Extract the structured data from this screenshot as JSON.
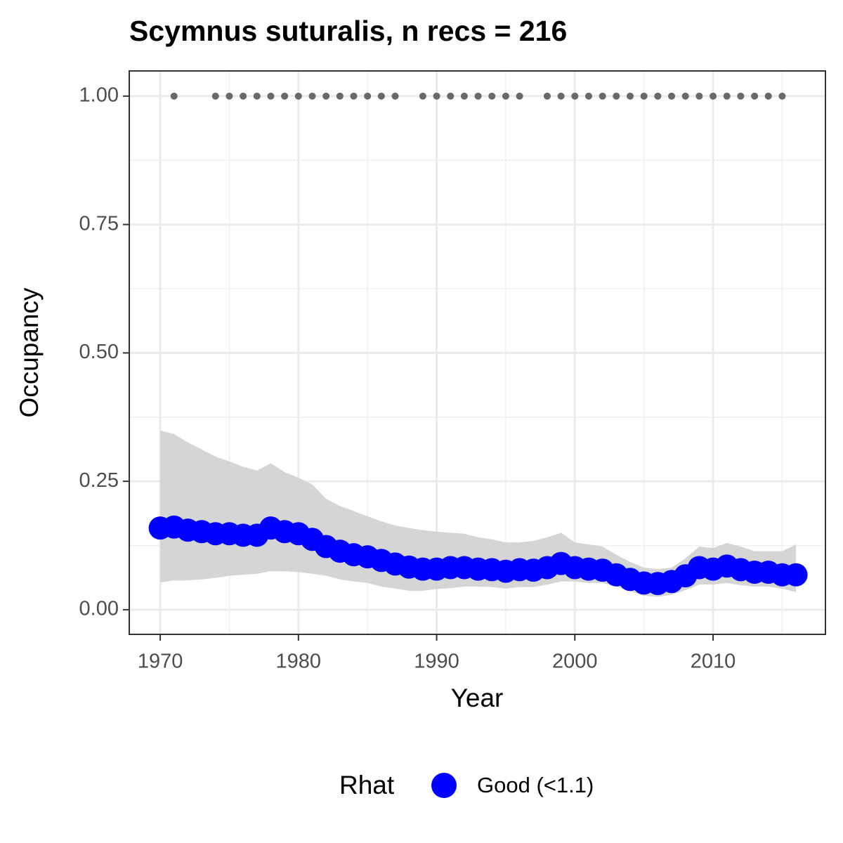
{
  "chart_data": {
    "type": "line",
    "title": "Scymnus suturalis, n recs = 216",
    "x_label": "Year",
    "y_label": "Occupancy",
    "x": [
      1970,
      1971,
      1972,
      1973,
      1974,
      1975,
      1976,
      1977,
      1978,
      1979,
      1980,
      1981,
      1982,
      1983,
      1984,
      1985,
      1986,
      1987,
      1988,
      1989,
      1990,
      1991,
      1992,
      1993,
      1994,
      1995,
      1996,
      1997,
      1998,
      1999,
      2000,
      2001,
      2002,
      2003,
      2004,
      2005,
      2006,
      2007,
      2008,
      2009,
      2010,
      2011,
      2012,
      2013,
      2014,
      2015,
      2016
    ],
    "series": [
      {
        "name": "Good (<1.1)",
        "color": "#0000ff",
        "values": [
          0.159,
          0.161,
          0.155,
          0.152,
          0.148,
          0.148,
          0.145,
          0.145,
          0.159,
          0.152,
          0.148,
          0.137,
          0.123,
          0.114,
          0.107,
          0.103,
          0.096,
          0.089,
          0.083,
          0.079,
          0.079,
          0.082,
          0.082,
          0.079,
          0.078,
          0.075,
          0.078,
          0.077,
          0.082,
          0.09,
          0.082,
          0.079,
          0.077,
          0.068,
          0.059,
          0.052,
          0.051,
          0.055,
          0.066,
          0.082,
          0.079,
          0.085,
          0.078,
          0.073,
          0.073,
          0.068,
          0.068
        ],
        "lower": [
          0.053,
          0.057,
          0.057,
          0.059,
          0.062,
          0.066,
          0.068,
          0.07,
          0.075,
          0.075,
          0.073,
          0.07,
          0.066,
          0.059,
          0.055,
          0.052,
          0.045,
          0.041,
          0.037,
          0.037,
          0.04,
          0.042,
          0.045,
          0.045,
          0.044,
          0.041,
          0.044,
          0.044,
          0.049,
          0.055,
          0.055,
          0.052,
          0.052,
          0.045,
          0.036,
          0.027,
          0.025,
          0.029,
          0.038,
          0.049,
          0.049,
          0.052,
          0.048,
          0.045,
          0.045,
          0.041,
          0.034
        ],
        "upper": [
          0.349,
          0.342,
          0.326,
          0.312,
          0.298,
          0.289,
          0.278,
          0.271,
          0.285,
          0.268,
          0.257,
          0.244,
          0.216,
          0.202,
          0.192,
          0.182,
          0.172,
          0.164,
          0.159,
          0.155,
          0.152,
          0.15,
          0.148,
          0.141,
          0.137,
          0.131,
          0.131,
          0.134,
          0.141,
          0.15,
          0.131,
          0.127,
          0.123,
          0.107,
          0.093,
          0.082,
          0.079,
          0.082,
          0.1,
          0.123,
          0.12,
          0.13,
          0.123,
          0.114,
          0.114,
          0.114,
          0.127
        ]
      }
    ],
    "band_color": "#d3d3d3",
    "record_color": "#696969",
    "record_x": [
      1971,
      1974,
      1975,
      1976,
      1977,
      1978,
      1979,
      1980,
      1981,
      1982,
      1983,
      1984,
      1985,
      1986,
      1987,
      1989,
      1990,
      1991,
      1992,
      1993,
      1994,
      1995,
      1996,
      1998,
      1999,
      2000,
      2001,
      2002,
      2003,
      2004,
      2005,
      2006,
      2007,
      2008,
      2009,
      2010,
      2011,
      2012,
      2013,
      2014,
      2015
    ],
    "record_values": [
      1,
      1,
      1,
      1,
      1,
      1,
      1,
      1,
      1,
      1,
      1,
      1,
      1,
      1,
      1,
      1,
      1,
      1,
      1,
      1,
      1,
      1,
      1,
      1,
      1,
      1,
      1,
      1,
      1,
      1,
      1,
      1,
      1,
      1,
      1,
      1,
      1,
      1,
      1,
      1,
      1
    ],
    "xlim": [
      1967.76,
      2018.13
    ],
    "ylim": [
      -0.048,
      1.049
    ],
    "xticks": [
      1970,
      1980,
      1990,
      2000,
      2010
    ],
    "yticks": [
      {
        "value": 0,
        "label": "0.00"
      },
      {
        "value": 0.25,
        "label": "0.25"
      },
      {
        "value": 0.5,
        "label": "0.50"
      },
      {
        "value": 0.75,
        "label": "0.75"
      },
      {
        "value": 1,
        "label": "1.00"
      }
    ],
    "x_minor_grid": [
      1975,
      1985,
      1995,
      2005,
      2015
    ],
    "y_minor_grid": [
      0.125,
      0.375,
      0.625,
      0.875
    ],
    "grid": true,
    "legend_title": "Rhat",
    "legend_position": "bottom"
  }
}
